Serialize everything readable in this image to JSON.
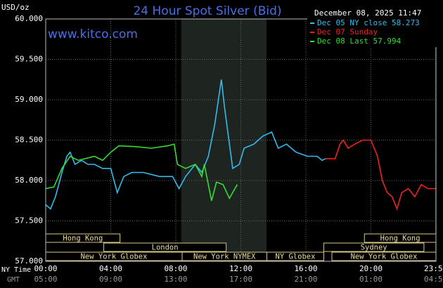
{
  "chart_data": {
    "type": "line",
    "title": "24 Hour Spot Silver (Bid)",
    "unit_label": "USD/oz",
    "timestamp": "December 08, 2025 11:47",
    "watermark": "www.kitco.com",
    "x_row_labels": [
      "NY Time",
      "GMT"
    ],
    "xlim": [
      0,
      24
    ],
    "xticks": [
      {
        "value": 0,
        "label": "00:00"
      },
      {
        "value": 4,
        "label": "04:00"
      },
      {
        "value": 8,
        "label": "08:00"
      },
      {
        "value": 12,
        "label": "12:00"
      },
      {
        "value": 16,
        "label": "16:00"
      },
      {
        "value": 20,
        "label": "20:00"
      },
      {
        "value": 23.98,
        "label": "23:59"
      }
    ],
    "x_secondary_labels": [
      "05:00",
      "09:00",
      "13:00",
      "17:00",
      "21:00",
      "01:00",
      "04:59"
    ],
    "ylim": [
      57,
      60
    ],
    "yticks": [
      {
        "value": 57,
        "label": "57.000"
      },
      {
        "value": 57.5,
        "label": "57.500"
      },
      {
        "value": 58,
        "label": "58.000"
      },
      {
        "value": 58.5,
        "label": "58.500"
      },
      {
        "value": 59,
        "label": "59.000"
      },
      {
        "value": 59.5,
        "label": "59.500"
      },
      {
        "value": 60,
        "label": "60.000"
      }
    ],
    "grid": true,
    "shade_range": [
      8.33,
      13.58
    ],
    "series": [
      {
        "name": "Dec 05 NY close 58.273",
        "color": "#33bbee",
        "x": [
          0,
          0.3,
          0.6,
          1.0,
          1.3,
          1.5,
          1.8,
          2.2,
          2.6,
          3.0,
          3.5,
          4.0,
          4.4,
          4.8,
          5.3,
          6.0,
          7.0,
          7.8,
          8.2,
          8.6,
          9.2,
          9.6,
          10.0,
          10.4,
          10.8,
          11.0,
          11.2,
          11.5,
          11.9,
          12.2,
          12.8,
          13.35,
          13.9,
          14.3,
          14.8,
          15.4,
          16.1,
          16.7,
          17.0,
          17.2
        ],
        "values": [
          57.7,
          57.65,
          57.8,
          58.1,
          58.3,
          58.35,
          58.2,
          58.25,
          58.2,
          58.2,
          58.15,
          58.15,
          57.85,
          58.05,
          58.1,
          58.1,
          58.05,
          58.05,
          57.9,
          58.05,
          58.2,
          58.1,
          58.3,
          58.7,
          59.25,
          58.9,
          58.6,
          58.15,
          58.2,
          58.4,
          58.45,
          58.55,
          58.6,
          58.4,
          58.45,
          58.35,
          58.3,
          58.3,
          58.25,
          58.27
        ]
      },
      {
        "name": "Dec 07 Sunday",
        "color": "#ee2222",
        "x": [
          17.2,
          17.8,
          18.1,
          18.3,
          18.6,
          19.0,
          19.5,
          20.0,
          20.4,
          20.7,
          21.0,
          21.3,
          21.6,
          21.9,
          22.3,
          22.7,
          23.1,
          23.5,
          24.0
        ],
        "values": [
          58.27,
          58.27,
          58.45,
          58.5,
          58.4,
          58.45,
          58.5,
          58.5,
          58.3,
          58.0,
          57.85,
          57.8,
          57.65,
          57.85,
          57.9,
          57.8,
          57.95,
          57.9,
          57.9
        ]
      },
      {
        "name": "Dec 08 Last 57.994",
        "color": "#33dd33",
        "x": [
          0,
          0.5,
          1.0,
          1.5,
          2.0,
          3.0,
          3.5,
          4.0,
          4.5,
          5.5,
          6.5,
          7.5,
          7.9,
          8.1,
          8.6,
          9.2,
          9.6,
          9.75,
          10.2,
          10.5,
          10.9,
          11.3,
          11.78
        ],
        "values": [
          57.9,
          57.92,
          58.15,
          58.3,
          58.25,
          58.3,
          58.25,
          58.35,
          58.43,
          58.42,
          58.4,
          58.43,
          58.45,
          58.2,
          58.15,
          58.2,
          58.05,
          58.2,
          57.75,
          57.98,
          57.95,
          57.78,
          57.95
        ]
      }
    ],
    "session_rows": [
      [
        {
          "label": "Hong Kong",
          "start": 0,
          "end": 4.57
        },
        {
          "label": "Hong Kong",
          "start": 19.6,
          "end": 24
        }
      ],
      [
        {
          "label": "London",
          "start": 3.57,
          "end": 11.1
        },
        {
          "label": "Sydney",
          "start": 17.1,
          "end": 23.26
        }
      ],
      [
        {
          "label": "New York Globex",
          "start": 0,
          "end": 8.39
        },
        {
          "label": "New York NYMEX",
          "start": 8.39,
          "end": 13.6
        },
        {
          "label": "NY Globex",
          "start": 13.6,
          "end": 17.1
        },
        {
          "label": "New York Globex",
          "start": 17.6,
          "end": 24
        }
      ]
    ]
  }
}
